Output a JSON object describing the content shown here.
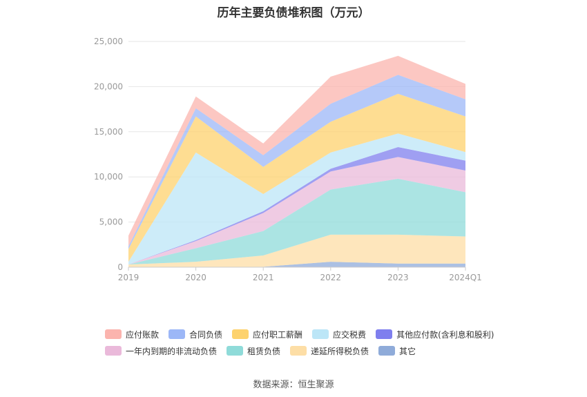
{
  "chart_data": {
    "type": "area",
    "stacked": true,
    "title": "历年主要负债堆积图（万元）",
    "source": "数据来源：恒生聚源",
    "categories": [
      "2019",
      "2020",
      "2021",
      "2022",
      "2023",
      "2024Q1"
    ],
    "ylim": [
      0,
      25000
    ],
    "yticks": [
      "0",
      "5,000",
      "10,000",
      "15,000",
      "20,000",
      "25,000"
    ],
    "ytick_values": [
      0,
      5000,
      10000,
      15000,
      20000,
      25000
    ],
    "grid": true,
    "legend_position": "bottom",
    "series": [
      {
        "name": "其它",
        "color": "#8fabd9",
        "values": [
          0,
          0,
          50,
          600,
          400,
          400
        ]
      },
      {
        "name": "递延所得税负债",
        "color": "#fddea6",
        "values": [
          300,
          600,
          1250,
          3000,
          3200,
          3000
        ]
      },
      {
        "name": "租赁负债",
        "color": "#8fdbd9",
        "values": [
          0,
          1500,
          2700,
          5000,
          6200,
          4900
        ]
      },
      {
        "name": "一年内到期的非流动负债",
        "color": "#eab9da",
        "values": [
          0,
          800,
          2000,
          2000,
          2400,
          2400
        ]
      },
      {
        "name": "其他应付款(含利息和股利)",
        "color": "#7f7fee",
        "values": [
          0,
          100,
          200,
          300,
          1100,
          1100
        ]
      },
      {
        "name": "应交税费",
        "color": "#bce6f7",
        "values": [
          300,
          9700,
          1900,
          1800,
          1500,
          950
        ]
      },
      {
        "name": "应付职工薪酬",
        "color": "#fdd26d",
        "values": [
          1400,
          4000,
          3000,
          3400,
          4400,
          3950
        ]
      },
      {
        "name": "合同负债",
        "color": "#9cb7f7",
        "values": [
          300,
          900,
          1300,
          2000,
          2100,
          1900
        ]
      },
      {
        "name": "应付账款",
        "color": "#fbb4ae",
        "values": [
          1200,
          1300,
          1300,
          3000,
          2100,
          1700
        ]
      }
    ],
    "legend_rows": [
      [
        "应付账款",
        "合同负债",
        "应付职工薪酬",
        "应交税费",
        "其他应付款(含利息和股利)"
      ],
      [
        "一年内到期的非流动负债",
        "租赁负债",
        "递延所得税负债",
        "其它"
      ]
    ]
  }
}
